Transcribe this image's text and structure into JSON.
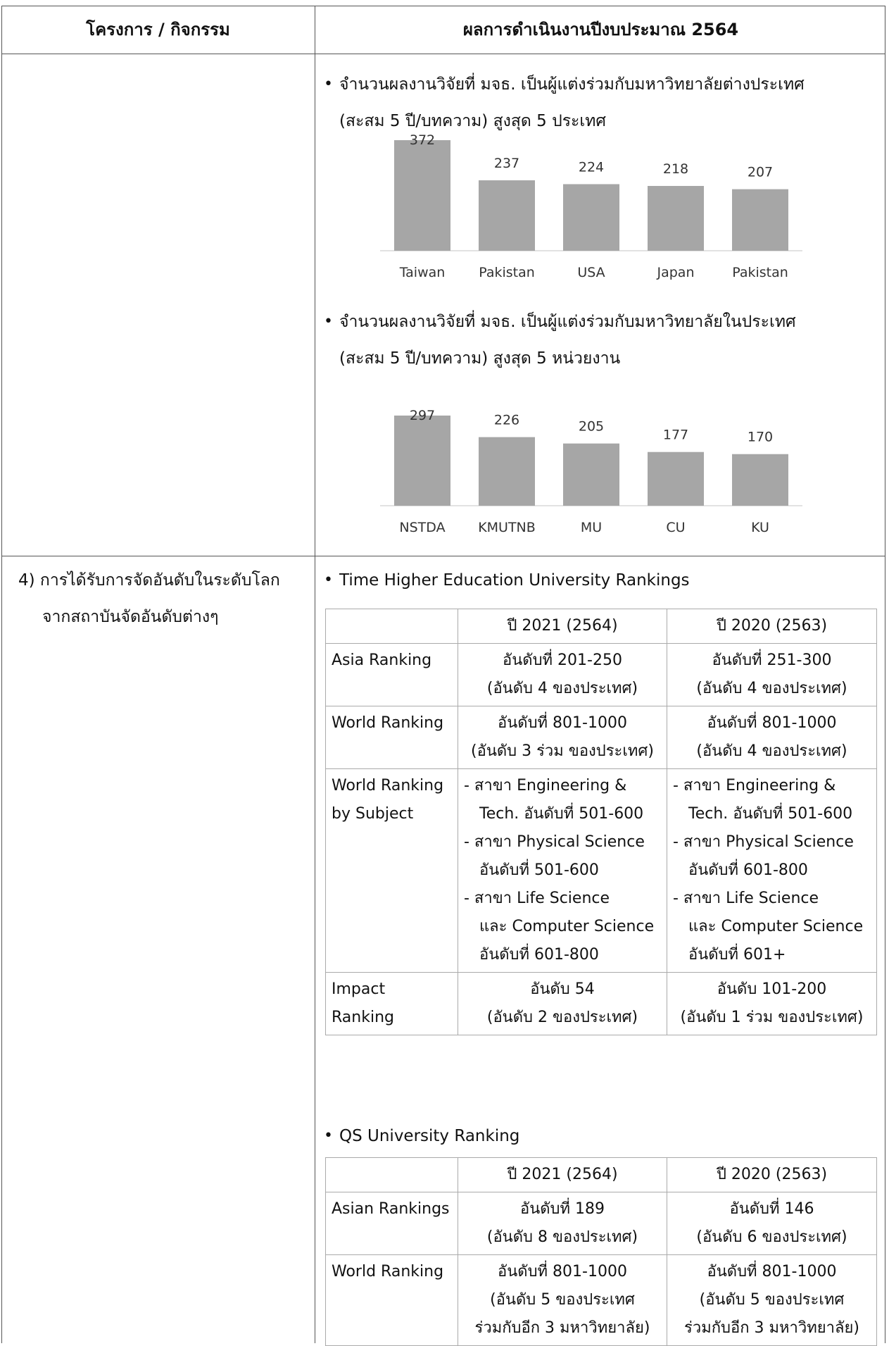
{
  "header": {
    "col1": "โครงการ / กิจกรรม",
    "col2": "ผลการดำเนินงานปีงบประมาณ 2564"
  },
  "section_intl": {
    "line1": "จำนวนผลงานวิจัยที่ มจธ. เป็นผู้แต่งร่วมกับมหาวิทยาลัยต่างประเทศ",
    "line2": "(สะสม 5 ปี/บทความ) สูงสุด 5 ประเทศ"
  },
  "section_domestic": {
    "line1": "จำนวนผลงานวิจัยที่ มจธ. เป็นผู้แต่งร่วมกับมหาวิทยาลัยในประเทศ",
    "line2": "(สะสม 5 ปี/บทความ) สูงสุด 5 หน่วยงาน"
  },
  "chart_data": [
    {
      "type": "bar",
      "categories": [
        "Taiwan",
        "Pakistan",
        "USA",
        "Japan",
        "Pakistan"
      ],
      "values": [
        372,
        237,
        224,
        218,
        207
      ],
      "title": "",
      "xlabel": "",
      "ylabel": "",
      "grid": false,
      "bar_color": "#a6a6a6"
    },
    {
      "type": "bar",
      "categories": [
        "NSTDA",
        "KMUTNB",
        "MU",
        "CU",
        "KU"
      ],
      "values": [
        297,
        226,
        205,
        177,
        170
      ],
      "title": "",
      "xlabel": "",
      "ylabel": "",
      "grid": false,
      "bar_color": "#a6a6a6"
    }
  ],
  "item4": {
    "line1": "4)  การได้รับการจัดอันดับในระดับโลก",
    "line2": "จากสถาบันจัดอันดับต่างๆ"
  },
  "the": {
    "title": "Time Higher Education University Rankings",
    "head": [
      "",
      "ปี 2021 (2564)",
      "ปี 2020 (2563)"
    ],
    "rows": [
      {
        "label": [
          "Asia Ranking"
        ],
        "y2021": [
          "อันดับที่ 201-250",
          "(อันดับ 4 ของประเทศ)"
        ],
        "y2020": [
          "อันดับที่ 251-300",
          "(อันดับ 4 ของประเทศ)"
        ]
      },
      {
        "label": [
          "World Ranking"
        ],
        "y2021": [
          "อันดับที่ 801-1000",
          "(อันดับ 3 ร่วม ของประเทศ)"
        ],
        "y2020": [
          "อันดับที่ 801-1000",
          "(อันดับ 4 ของประเทศ)"
        ]
      },
      {
        "label": [
          "World Ranking",
          "by Subject"
        ],
        "y2021": [
          "- สาขา Engineering &",
          "Tech. อันดับที่ 501-600",
          "- สาขา Physical Science",
          "อันดับที่ 501-600",
          "- สาขา Life Science",
          "และ Computer Science",
          "อันดับที่ 601-800"
        ],
        "y2020": [
          "- สาขา Engineering &",
          "Tech. อันดับที่ 501-600",
          "- สาขา Physical Science",
          "อันดับที่ 601-800",
          "-  สาขา Life Science",
          "และ Computer Science",
          "อันดับที่ 601+"
        ]
      },
      {
        "label": [
          "Impact",
          "Ranking"
        ],
        "y2021": [
          "อันดับ 54",
          "(อันดับ 2 ของประเทศ)"
        ],
        "y2020": [
          "อันดับ 101-200",
          "(อันดับ 1 ร่วม ของประเทศ)"
        ]
      }
    ]
  },
  "qs": {
    "title": "QS University Ranking",
    "head": [
      "",
      "ปี 2021 (2564)",
      "ปี 2020 (2563)"
    ],
    "rows": [
      {
        "label": [
          "Asian Rankings"
        ],
        "y2021": [
          "อันดับที่ 189",
          "(อันดับ 8 ของประเทศ)"
        ],
        "y2020": [
          "อันดับที่ 146",
          "(อันดับ 6 ของประเทศ)"
        ]
      },
      {
        "label": [
          "World Ranking"
        ],
        "y2021": [
          "อันดับที่ 801-1000",
          "(อันดับ 5 ของประเทศ",
          "ร่วมกับอีก 3 มหาวิทยาลัย)"
        ],
        "y2020": [
          "อันดับที่ 801-1000",
          "(อันดับ 5 ของประเทศ",
          "ร่วมกับอีก 3 มหาวิทยาลัย)"
        ]
      }
    ]
  }
}
